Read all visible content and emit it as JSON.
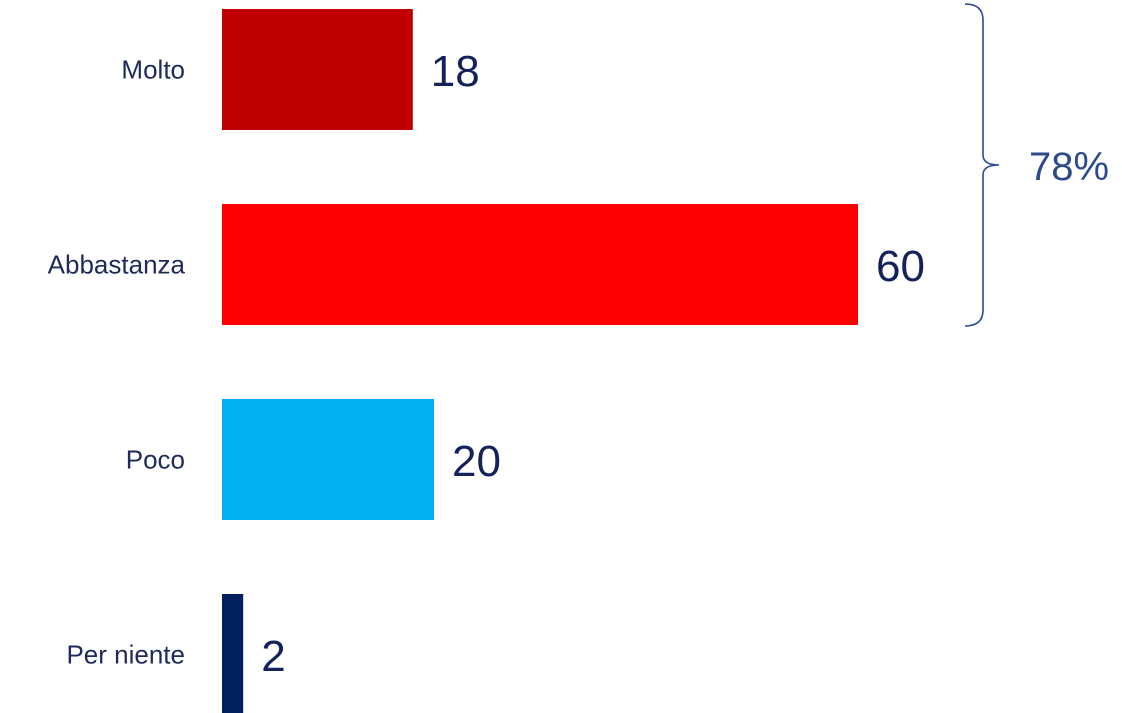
{
  "chart_data": {
    "type": "bar",
    "orientation": "horizontal",
    "categories": [
      "Molto",
      "Abbastanza",
      "Poco",
      "Per niente"
    ],
    "values": [
      18,
      60,
      20,
      2
    ],
    "value_labels": [
      "18",
      "60",
      "20",
      "2"
    ],
    "colors": [
      "#c00000",
      "#ff0000",
      "#00b0f0",
      "#002060"
    ],
    "xlim": [
      0,
      60
    ],
    "grid": false,
    "legend": "none",
    "annotation": {
      "type": "bracket",
      "covers_categories": [
        "Molto",
        "Abbastanza"
      ],
      "label": "78%",
      "color": "#2c4a8c"
    }
  }
}
